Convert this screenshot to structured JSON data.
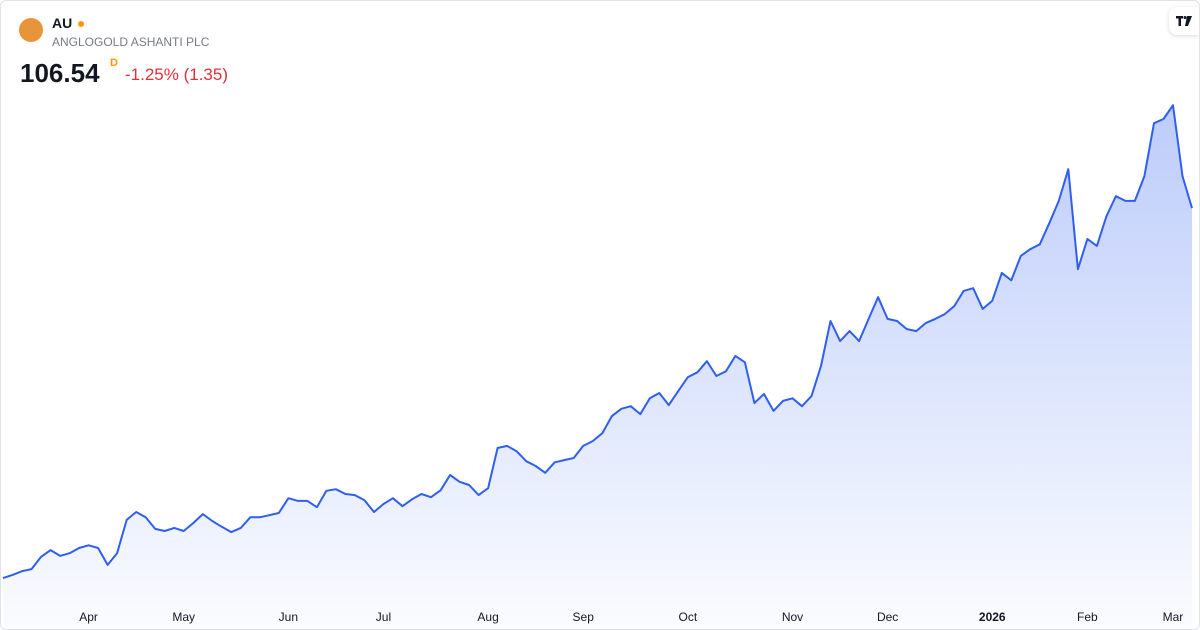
{
  "header": {
    "symbol": "AU",
    "name": "ANGLOGOLD ASHANTI PLC",
    "price": "106.54",
    "price_flag": "D",
    "change": "-1.25% (1.35)"
  },
  "chart_data": {
    "type": "area",
    "categories": [
      null,
      null,
      null,
      null,
      null,
      null,
      null,
      null,
      null,
      "Apr",
      null,
      null,
      null,
      null,
      null,
      null,
      null,
      null,
      null,
      "May",
      null,
      null,
      null,
      null,
      null,
      null,
      null,
      null,
      null,
      null,
      "Jun",
      null,
      null,
      null,
      null,
      null,
      null,
      null,
      null,
      null,
      "Jul",
      null,
      null,
      null,
      null,
      null,
      null,
      null,
      null,
      null,
      null,
      "Aug",
      null,
      null,
      null,
      null,
      null,
      null,
      null,
      null,
      null,
      "Sep",
      null,
      null,
      null,
      null,
      null,
      null,
      null,
      null,
      null,
      null,
      "Oct",
      null,
      null,
      null,
      null,
      null,
      null,
      null,
      null,
      null,
      null,
      "Nov",
      null,
      null,
      null,
      null,
      null,
      null,
      null,
      null,
      null,
      "Dec",
      null,
      null,
      null,
      null,
      null,
      null,
      null,
      null,
      null,
      null,
      "2026",
      null,
      null,
      null,
      null,
      null,
      null,
      null,
      null,
      null,
      "Feb",
      null,
      null,
      null,
      null,
      null,
      null,
      null,
      null,
      "Mar",
      null,
      null
    ],
    "series": [
      {
        "color": "#2f5ff0",
        "values": [
          36.6,
          37.2,
          37.9,
          38.3,
          40.6,
          41.9,
          40.8,
          41.3,
          42.3,
          42.8,
          42.3,
          39.1,
          41.3,
          47.6,
          49.1,
          48.1,
          45.9,
          45.5,
          46.1,
          45.5,
          47.0,
          48.7,
          47.4,
          46.3,
          45.3,
          46.1,
          48.1,
          48.1,
          48.5,
          48.9,
          51.7,
          51.2,
          51.2,
          50.0,
          53.1,
          53.4,
          52.5,
          52.3,
          51.3,
          49.1,
          50.6,
          51.7,
          50.2,
          51.5,
          52.5,
          51.9,
          53.2,
          56.1,
          54.8,
          54.2,
          52.3,
          53.6,
          61.2,
          61.6,
          60.6,
          58.7,
          57.8,
          56.5,
          58.5,
          58.9,
          59.3,
          61.6,
          62.5,
          64.0,
          67.2,
          68.6,
          69.1,
          67.6,
          70.6,
          71.6,
          69.3,
          72.0,
          74.6,
          75.5,
          77.6,
          74.8,
          75.7,
          78.6,
          77.4,
          69.7,
          71.4,
          68.2,
          70.1,
          70.6,
          69.1,
          71.0,
          76.7,
          85.2,
          81.4,
          83.3,
          81.4,
          85.6,
          89.7,
          85.6,
          85.2,
          83.7,
          83.3,
          84.8,
          85.6,
          86.5,
          88.0,
          90.9,
          91.4,
          87.5,
          89.0,
          94.3,
          92.9,
          97.5,
          98.8,
          99.7,
          103.7,
          107.9,
          113.9,
          95.0,
          100.7,
          99.4,
          105.0,
          108.8,
          107.9,
          107.9,
          112.6,
          122.6,
          123.4,
          126.0,
          112.6,
          106.54
        ]
      }
    ],
    "ylim": [
      26.6,
      145.7
    ]
  }
}
